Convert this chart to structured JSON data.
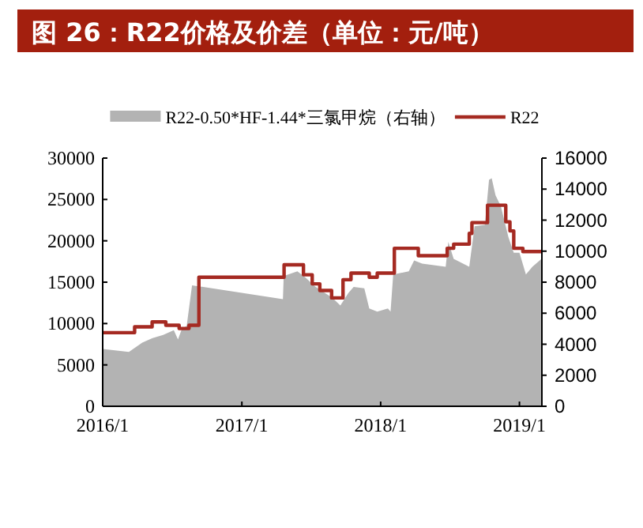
{
  "chart_data": {
    "type": "area",
    "title": "图 26：R22价格及价差（单位：元/吨）",
    "xlim": [
      "2016-01-01",
      "2019-03-01"
    ],
    "xticks": [
      {
        "value": "2016-01",
        "label": "2016/1"
      },
      {
        "value": "2017-01",
        "label": "2017/1"
      },
      {
        "value": "2018-01",
        "label": "2018/1"
      },
      {
        "value": "2019-01",
        "label": "2019/1"
      }
    ],
    "ylim": [
      0,
      30000
    ],
    "yticks": [
      0,
      5000,
      10000,
      15000,
      20000,
      25000,
      30000
    ],
    "y2lim": [
      0,
      16000
    ],
    "y2ticks": [
      0,
      2000,
      4000,
      6000,
      8000,
      10000,
      12000,
      14000,
      16000
    ],
    "legend": "top",
    "grid": false,
    "series": [
      {
        "name": "R22-0.50*HF-1.44*三氯甲烷（右轴）",
        "axis": "y2",
        "color": "#b3b3b3",
        "x": [
          "2016-01-01",
          "2016-03-10",
          "2016-04-14",
          "2016-05-11",
          "2016-06-08",
          "2016-07-06",
          "2016-07-17",
          "2016-07-26",
          "2016-08-09",
          "2016-08-23",
          "2017-04-19",
          "2017-04-21",
          "2017-05-27",
          "2017-06-17",
          "2017-07-14",
          "2017-08-27",
          "2017-09-17",
          "2017-10-08",
          "2017-10-22",
          "2017-11-19",
          "2017-12-02",
          "2017-12-23",
          "2018-01-20",
          "2018-01-27",
          "2018-02-03",
          "2018-03-16",
          "2018-03-30",
          "2018-04-20",
          "2018-06-21",
          "2018-06-28",
          "2018-07-12",
          "2018-08-22",
          "2018-09-05",
          "2018-10-02",
          "2018-10-13",
          "2018-10-20",
          "2018-10-30",
          "2018-11-13",
          "2018-12-03",
          "2018-12-17",
          "2019-01-01",
          "2019-01-18",
          "2019-02-04",
          "2019-02-28"
        ],
        "values": [
          3700,
          3500,
          4100,
          4400,
          4600,
          4900,
          4300,
          4900,
          5200,
          7800,
          6900,
          8400,
          8700,
          8300,
          7700,
          7000,
          6500,
          7300,
          7700,
          7600,
          6300,
          6100,
          6300,
          6100,
          8500,
          8700,
          9400,
          9200,
          9000,
          10600,
          9500,
          9000,
          11600,
          11700,
          14600,
          14700,
          13600,
          12900,
          10900,
          9900,
          9900,
          8500,
          9000,
          9500
        ]
      },
      {
        "name": "R22",
        "type": "step",
        "color": "#a52a22",
        "x": [
          "2016-01-01",
          "2016-03-25",
          "2016-05-10",
          "2016-06-15",
          "2016-07-20",
          "2016-08-15",
          "2016-09-10",
          "2017-04-22",
          "2017-06-12",
          "2017-07-05",
          "2017-07-25",
          "2017-08-25",
          "2017-09-24",
          "2017-10-15",
          "2017-12-02",
          "2017-12-23",
          "2018-02-06",
          "2018-04-10",
          "2018-06-25",
          "2018-07-12",
          "2018-08-22",
          "2018-08-29",
          "2018-10-09",
          "2018-11-26",
          "2018-12-07",
          "2018-12-17",
          "2019-01-10",
          "2019-02-28"
        ],
        "values": [
          8900,
          9600,
          10200,
          9800,
          9400,
          9800,
          15600,
          17100,
          15900,
          14800,
          14000,
          13100,
          15300,
          16100,
          15600,
          16100,
          19100,
          18200,
          19100,
          19600,
          20900,
          22200,
          24300,
          22300,
          21200,
          19100,
          18700,
          18700
        ]
      }
    ]
  }
}
